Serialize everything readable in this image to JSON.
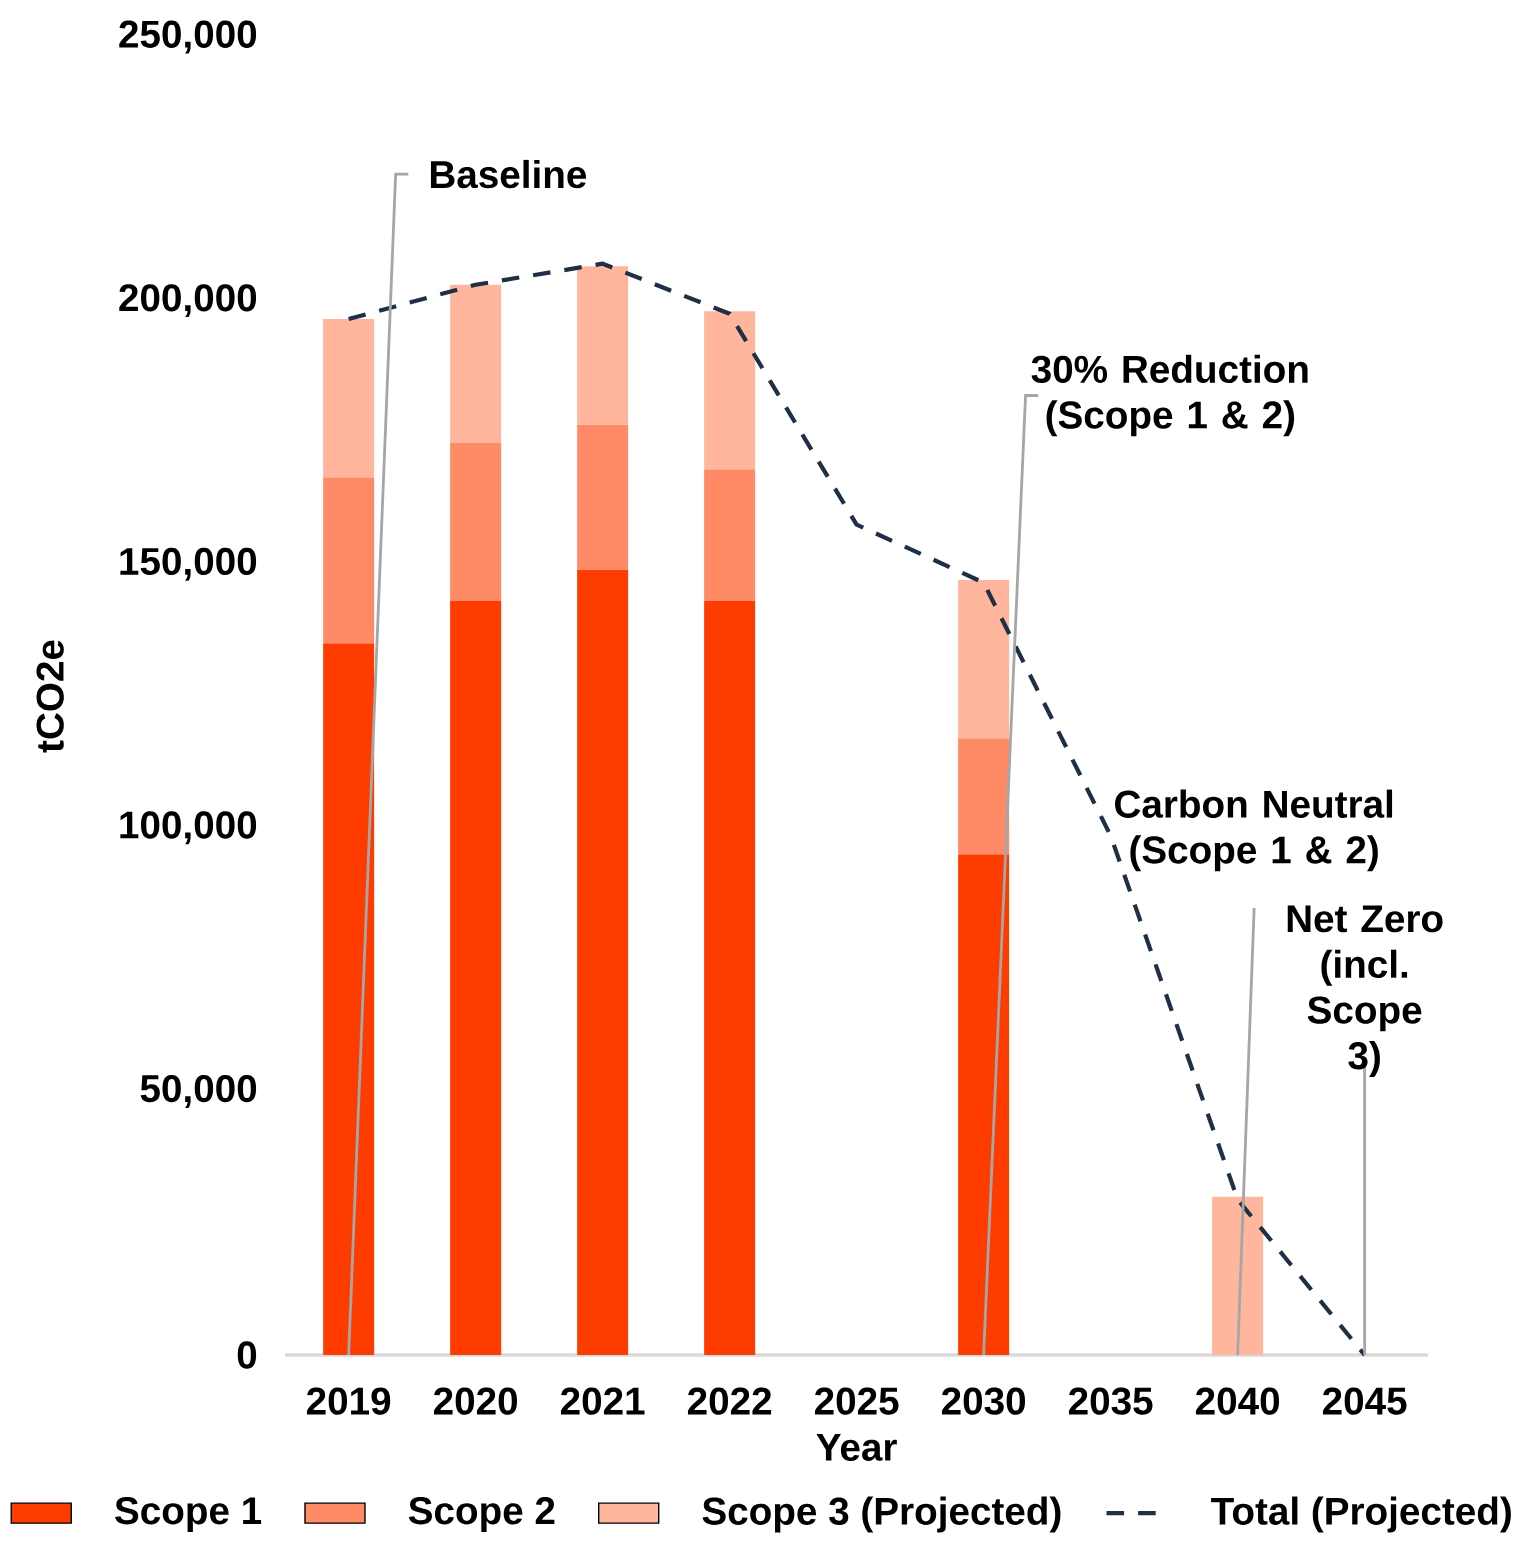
{
  "chart_data": {
    "type": "bar",
    "stacked": true,
    "xlabel": "Year",
    "ylabel": "tCO2e",
    "categories": [
      "2019",
      "2020",
      "2021",
      "2022",
      "2025",
      "2030",
      "2035",
      "2040",
      "2045"
    ],
    "series": [
      {
        "name": "Scope 1",
        "color": "#ff3c00",
        "values": [
          135000,
          143000,
          149000,
          143000,
          null,
          95000,
          null,
          0,
          0
        ]
      },
      {
        "name": "Scope 2",
        "color": "#ff8a65",
        "values": [
          31500,
          30000,
          27500,
          25000,
          null,
          22000,
          null,
          0,
          0
        ]
      },
      {
        "name": "Scope 3 (Projected)",
        "color": "#ffb69c",
        "values": [
          30000,
          30000,
          30000,
          30000,
          null,
          30000,
          null,
          30000,
          0
        ]
      },
      {
        "name": "Total (Projected)",
        "type": "line",
        "line_style": "dashed",
        "color": "#1f3046",
        "values": [
          196500,
          203000,
          207000,
          197500,
          157500,
          146500,
          98500,
          29500,
          0
        ]
      }
    ],
    "ylim": [
      0,
      250000
    ],
    "yticks": [
      {
        "value": 0,
        "label": "0"
      },
      {
        "value": 50000,
        "label": "50,000"
      },
      {
        "value": 100000,
        "label": "100,000"
      },
      {
        "value": 150000,
        "label": "150,000"
      },
      {
        "value": 200000,
        "label": "200,000"
      },
      {
        "value": 250000,
        "label": "250,000"
      }
    ],
    "legend": "bottom",
    "marker": "none",
    "annotations": [
      {
        "text": "Baseline",
        "x": "2019",
        "y": 0
      },
      {
        "text": "30% Reduction (Scope 1 & 2)",
        "x": "2030",
        "y": 0
      },
      {
        "text": "Carbon Neutral (Scope 1 & 2)",
        "x": "2040",
        "y": 0
      },
      {
        "text": "Net Zero (incl. Scope 3)",
        "x": "2045",
        "y": 0
      }
    ]
  }
}
